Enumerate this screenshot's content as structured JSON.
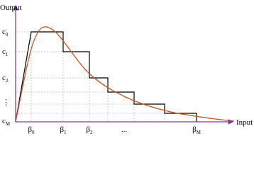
{
  "axis_labels": {
    "y": "Output",
    "x": "Input"
  },
  "y_labels": [
    {
      "symbol": "c",
      "sub": "0"
    },
    {
      "symbol": "c",
      "sub": "1"
    },
    {
      "symbol": "c",
      "sub": "2"
    },
    {
      "symbol": "⋮"
    },
    {
      "symbol": "c",
      "sub": "M"
    }
  ],
  "x_labels": [
    {
      "symbol": "β",
      "sub": "0"
    },
    {
      "symbol": "β",
      "sub": "1"
    },
    {
      "symbol": "β",
      "sub": "2"
    },
    {
      "symbol": "..."
    },
    {
      "symbol": "β",
      "sub": "M"
    }
  ]
}
